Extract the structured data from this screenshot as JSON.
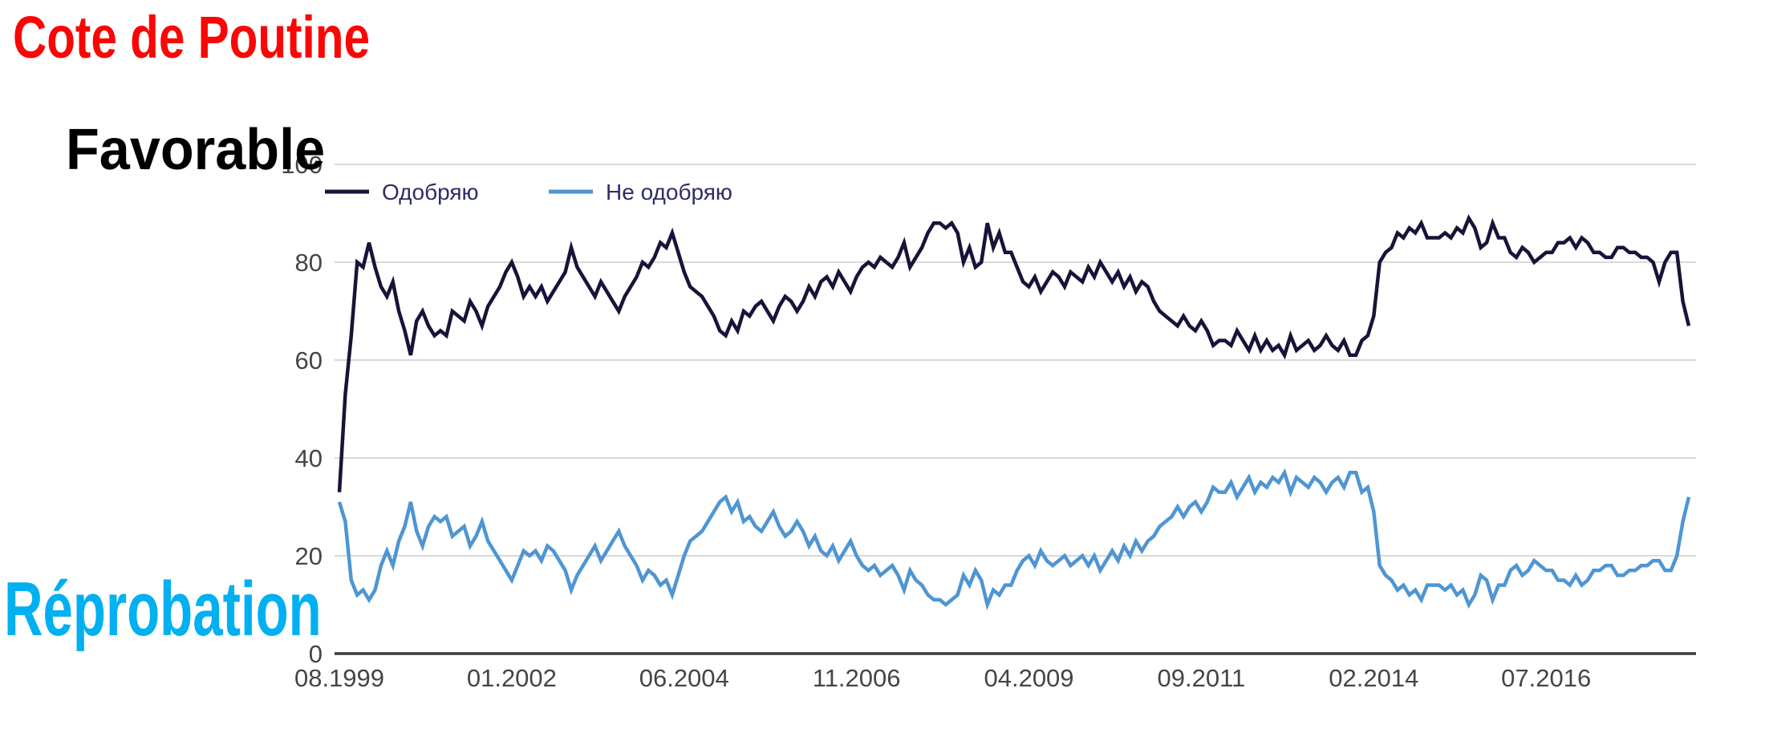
{
  "overlay": {
    "title": "Cote de Poutine",
    "title_color": "#fb0606",
    "favorable_label": "Favorable",
    "favorable_color": "#000000",
    "reprobation_label": "Réprobation",
    "reprobation_color": "#00b0f0"
  },
  "legend": {
    "position": "top",
    "text_color": "#2d2d66",
    "items": [
      {
        "label": "Одобряю",
        "color": "#191339"
      },
      {
        "label": "Не одобряю",
        "color": "#4f95d2"
      }
    ]
  },
  "axes": {
    "grid_color": "#d9d9d9",
    "axis_color": "#3a3a3a",
    "tick_color": "#454545",
    "y_ticks": [
      {
        "label": "0",
        "value": 0
      },
      {
        "label": "20",
        "value": 20
      },
      {
        "label": "40",
        "value": 40
      },
      {
        "label": "60",
        "value": 60
      },
      {
        "label": "80",
        "value": 80
      },
      {
        "label": "100",
        "value": 100,
        "note": "partially hidden behind Favorable label"
      }
    ],
    "x_tick_labels": [
      "08.1999",
      "01.2002",
      "06.2004",
      "11.2006",
      "04.2009",
      "09.2011",
      "02.2014",
      "07.2016"
    ]
  },
  "chart_data": {
    "type": "line",
    "title": "Cote de Poutine",
    "x_start": "08.1999",
    "x_end_estimate": "07.2018",
    "frequency": "monthly",
    "ylim": [
      0,
      100
    ],
    "grid": true,
    "legend_position": "top",
    "background": "#ffffff",
    "x_tick_labels": [
      "08.1999",
      "01.2002",
      "06.2004",
      "11.2006",
      "04.2009",
      "09.2011",
      "02.2014",
      "07.2016"
    ],
    "x_tick_month_indices": [
      0,
      29,
      58,
      87,
      116,
      145,
      174,
      203
    ],
    "series": [
      {
        "name": "Одобряю",
        "annotation_fr": "Favorable",
        "color": "#191339",
        "values": [
          33,
          53,
          65,
          80,
          79,
          84,
          79,
          75,
          73,
          76,
          70,
          66,
          61,
          68,
          70,
          67,
          65,
          66,
          65,
          70,
          69,
          68,
          72,
          70,
          67,
          71,
          73,
          75,
          78,
          80,
          77,
          73,
          75,
          73,
          75,
          72,
          74,
          76,
          78,
          83,
          79,
          77,
          75,
          73,
          76,
          74,
          72,
          70,
          73,
          75,
          77,
          80,
          79,
          81,
          84,
          83,
          86,
          82,
          78,
          75,
          74,
          73,
          71,
          69,
          66,
          65,
          68,
          66,
          70,
          69,
          71,
          72,
          70,
          68,
          71,
          73,
          72,
          70,
          72,
          75,
          73,
          76,
          77,
          75,
          78,
          76,
          74,
          77,
          79,
          80,
          79,
          81,
          80,
          79,
          81,
          84,
          79,
          81,
          83,
          86,
          88,
          88,
          87,
          88,
          86,
          80,
          83,
          79,
          80,
          88,
          83,
          86,
          82,
          82,
          79,
          76,
          75,
          77,
          74,
          76,
          78,
          77,
          75,
          78,
          77,
          76,
          79,
          77,
          80,
          78,
          76,
          78,
          75,
          77,
          74,
          76,
          75,
          72,
          70,
          69,
          68,
          67,
          69,
          67,
          66,
          68,
          66,
          63,
          64,
          64,
          63,
          66,
          64,
          62,
          65,
          62,
          64,
          62,
          63,
          61,
          65,
          62,
          63,
          64,
          62,
          63,
          65,
          63,
          62,
          64,
          61,
          61,
          64,
          65,
          69,
          80,
          82,
          83,
          86,
          85,
          87,
          86,
          88,
          85,
          85,
          85,
          86,
          85,
          87,
          86,
          89,
          87,
          83,
          84,
          88,
          85,
          85,
          82,
          81,
          83,
          82,
          80,
          81,
          82,
          82,
          84,
          84,
          85,
          83,
          85,
          84,
          82,
          82,
          81,
          81,
          83,
          83,
          82,
          82,
          81,
          81,
          80,
          76,
          80,
          82,
          82,
          72,
          67
        ]
      },
      {
        "name": "Не одобряю",
        "annotation_fr": "Réprobation",
        "color": "#4f95d2",
        "values": [
          31,
          27,
          15,
          12,
          13,
          11,
          13,
          18,
          21,
          18,
          23,
          26,
          31,
          25,
          22,
          26,
          28,
          27,
          28,
          24,
          25,
          26,
          22,
          24,
          27,
          23,
          21,
          19,
          17,
          15,
          18,
          21,
          20,
          21,
          19,
          22,
          21,
          19,
          17,
          13,
          16,
          18,
          20,
          22,
          19,
          21,
          23,
          25,
          22,
          20,
          18,
          15,
          17,
          16,
          14,
          15,
          12,
          16,
          20,
          23,
          24,
          25,
          27,
          29,
          31,
          32,
          29,
          31,
          27,
          28,
          26,
          25,
          27,
          29,
          26,
          24,
          25,
          27,
          25,
          22,
          24,
          21,
          20,
          22,
          19,
          21,
          23,
          20,
          18,
          17,
          18,
          16,
          17,
          18,
          16,
          13,
          17,
          15,
          14,
          12,
          11,
          11,
          10,
          11,
          12,
          16,
          14,
          17,
          15,
          10,
          13,
          12,
          14,
          14,
          17,
          19,
          20,
          18,
          21,
          19,
          18,
          19,
          20,
          18,
          19,
          20,
          18,
          20,
          17,
          19,
          21,
          19,
          22,
          20,
          23,
          21,
          23,
          24,
          26,
          27,
          28,
          30,
          28,
          30,
          31,
          29,
          31,
          34,
          33,
          33,
          35,
          32,
          34,
          36,
          33,
          35,
          34,
          36,
          35,
          37,
          33,
          36,
          35,
          34,
          36,
          35,
          33,
          35,
          36,
          34,
          37,
          37,
          33,
          34,
          29,
          18,
          16,
          15,
          13,
          14,
          12,
          13,
          11,
          14,
          14,
          14,
          13,
          14,
          12,
          13,
          10,
          12,
          16,
          15,
          11,
          14,
          14,
          17,
          18,
          16,
          17,
          19,
          18,
          17,
          17,
          15,
          15,
          14,
          16,
          14,
          15,
          17,
          17,
          18,
          18,
          16,
          16,
          17,
          17,
          18,
          18,
          19,
          19,
          17,
          17,
          20,
          27,
          32
        ]
      }
    ]
  }
}
